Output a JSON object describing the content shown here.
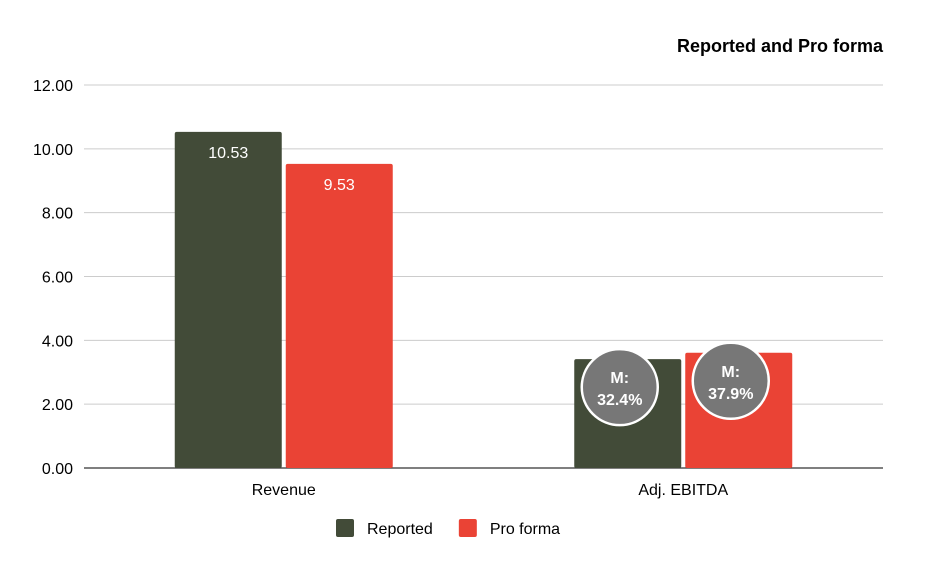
{
  "chart_data": {
    "type": "bar",
    "title": "Reported and Pro forma",
    "categories": [
      "Revenue",
      "Adj. EBITDA"
    ],
    "series": [
      {
        "name": "Reported",
        "values": [
          10.53,
          3.41
        ],
        "color": "#424b38",
        "data_labels": [
          "10.53",
          ""
        ]
      },
      {
        "name": "Pro forma",
        "values": [
          9.53,
          3.61
        ],
        "color": "#ea4335",
        "data_labels": [
          "9.53",
          ""
        ]
      }
    ],
    "ylim": [
      0,
      12
    ],
    "yticks": [
      "0.00",
      "2.00",
      "4.00",
      "6.00",
      "8.00",
      "10.00",
      "12.00"
    ],
    "grid": true,
    "legend_position": "bottom",
    "annotations": [
      {
        "category": "Adj. EBITDA",
        "series": "Reported",
        "line1": "M:",
        "line2": "32.4%",
        "color": "#777777"
      },
      {
        "category": "Adj. EBITDA",
        "series": "Pro forma",
        "line1": "M:",
        "line2": "37.9%",
        "color": "#777777"
      }
    ]
  }
}
